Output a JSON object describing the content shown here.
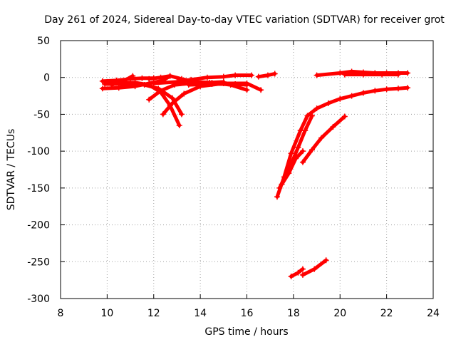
{
  "chart_data": {
    "type": "scatter",
    "title": "Day 261 of 2024, Sidereal Day-to-day VTEC variation (SDTVAR) for receiver grot",
    "xlabel": "GPS time / hours",
    "ylabel": "SDTVAR / TECUs",
    "xlim": [
      8,
      24
    ],
    "ylim": [
      -300,
      50
    ],
    "xticks": [
      8,
      10,
      12,
      14,
      16,
      18,
      20,
      22,
      24
    ],
    "yticks": [
      50,
      0,
      -50,
      -100,
      -150,
      -200,
      -250,
      -300
    ],
    "grid": true,
    "color": "#ff0000",
    "series": [
      {
        "points": [
          [
            9.8,
            -15
          ],
          [
            10.5,
            -14
          ],
          [
            11.2,
            -12
          ],
          [
            11.8,
            -8
          ],
          [
            12.4,
            -4
          ],
          [
            12.7,
            2
          ]
        ]
      },
      {
        "points": [
          [
            9.8,
            -5
          ],
          [
            10.4,
            -4
          ],
          [
            11.0,
            -2
          ],
          [
            11.5,
            -1
          ],
          [
            12.0,
            -1
          ]
        ]
      },
      {
        "points": [
          [
            9.9,
            -9
          ],
          [
            10.5,
            -9
          ],
          [
            11.0,
            -9
          ],
          [
            11.6,
            -10
          ],
          [
            12.2,
            -15
          ],
          [
            12.8,
            -28
          ],
          [
            13.2,
            -50
          ]
        ]
      },
      {
        "points": [
          [
            10.2,
            -10
          ],
          [
            10.7,
            -5
          ],
          [
            11.1,
            2
          ]
        ]
      },
      {
        "points": [
          [
            10.5,
            -8
          ],
          [
            11.2,
            -7
          ],
          [
            11.8,
            -10
          ],
          [
            12.3,
            -20
          ],
          [
            12.7,
            -38
          ],
          [
            13.1,
            -65
          ]
        ]
      },
      {
        "points": [
          [
            11.8,
            -30
          ],
          [
            12.3,
            -18
          ],
          [
            12.9,
            -10
          ],
          [
            13.6,
            -8
          ],
          [
            14.4,
            -7
          ],
          [
            15.0,
            -6
          ]
        ]
      },
      {
        "points": [
          [
            12.4,
            -50
          ],
          [
            12.8,
            -35
          ],
          [
            13.3,
            -22
          ],
          [
            14.0,
            -12
          ],
          [
            15.0,
            -8
          ],
          [
            16.0,
            -8
          ],
          [
            16.6,
            -17
          ]
        ]
      },
      {
        "points": [
          [
            11.8,
            -2
          ],
          [
            12.3,
            0
          ],
          [
            12.7,
            2
          ],
          [
            13.2,
            -2
          ],
          [
            13.8,
            -6
          ],
          [
            14.5,
            -7
          ],
          [
            15.3,
            -10
          ],
          [
            16.0,
            -17
          ]
        ]
      },
      {
        "points": [
          [
            12.0,
            -8
          ],
          [
            13.0,
            -6
          ],
          [
            13.6,
            -3
          ],
          [
            14.3,
            0
          ],
          [
            15.0,
            1
          ],
          [
            15.5,
            3
          ],
          [
            16.2,
            3
          ]
        ]
      },
      {
        "points": [
          [
            13.5,
            -10
          ],
          [
            14.5,
            -9
          ],
          [
            15.5,
            -9
          ],
          [
            16.0,
            -10
          ]
        ]
      },
      {
        "points": [
          [
            16.5,
            1
          ],
          [
            16.9,
            3
          ],
          [
            17.2,
            5
          ]
        ]
      },
      {
        "points": [
          [
            19.0,
            3
          ],
          [
            20.0,
            6
          ],
          [
            20.5,
            8
          ],
          [
            21.0,
            7
          ],
          [
            21.5,
            6
          ],
          [
            22.0,
            6
          ],
          [
            22.5,
            6
          ],
          [
            22.9,
            6
          ]
        ]
      },
      {
        "points": [
          [
            20.2,
            4
          ],
          [
            21.0,
            4
          ],
          [
            21.8,
            4
          ],
          [
            22.5,
            4
          ]
        ]
      },
      {
        "points": [
          [
            17.3,
            -162
          ],
          [
            17.6,
            -135
          ],
          [
            17.9,
            -103
          ],
          [
            18.3,
            -72
          ],
          [
            18.6,
            -52
          ],
          [
            19.0,
            -42
          ],
          [
            19.5,
            -35
          ],
          [
            20.0,
            -29
          ],
          [
            20.5,
            -25
          ],
          [
            21.0,
            -21
          ],
          [
            21.5,
            -18
          ],
          [
            22.0,
            -16
          ],
          [
            22.5,
            -15
          ],
          [
            22.9,
            -14
          ]
        ]
      },
      {
        "points": [
          [
            17.4,
            -150
          ],
          [
            17.8,
            -125
          ],
          [
            18.2,
            -95
          ],
          [
            18.5,
            -72
          ],
          [
            18.8,
            -52
          ]
        ]
      },
      {
        "points": [
          [
            17.5,
            -145
          ],
          [
            17.8,
            -130
          ],
          [
            18.1,
            -110
          ],
          [
            18.4,
            -100
          ]
        ]
      },
      {
        "points": [
          [
            18.4,
            -115
          ],
          [
            18.8,
            -98
          ],
          [
            19.2,
            -82
          ],
          [
            19.7,
            -67
          ],
          [
            20.2,
            -53
          ]
        ]
      },
      {
        "points": [
          [
            17.9,
            -270
          ],
          [
            18.2,
            -265
          ],
          [
            18.4,
            -260
          ]
        ]
      },
      {
        "points": [
          [
            18.4,
            -268
          ],
          [
            18.9,
            -260
          ],
          [
            19.4,
            -248
          ]
        ]
      }
    ]
  }
}
